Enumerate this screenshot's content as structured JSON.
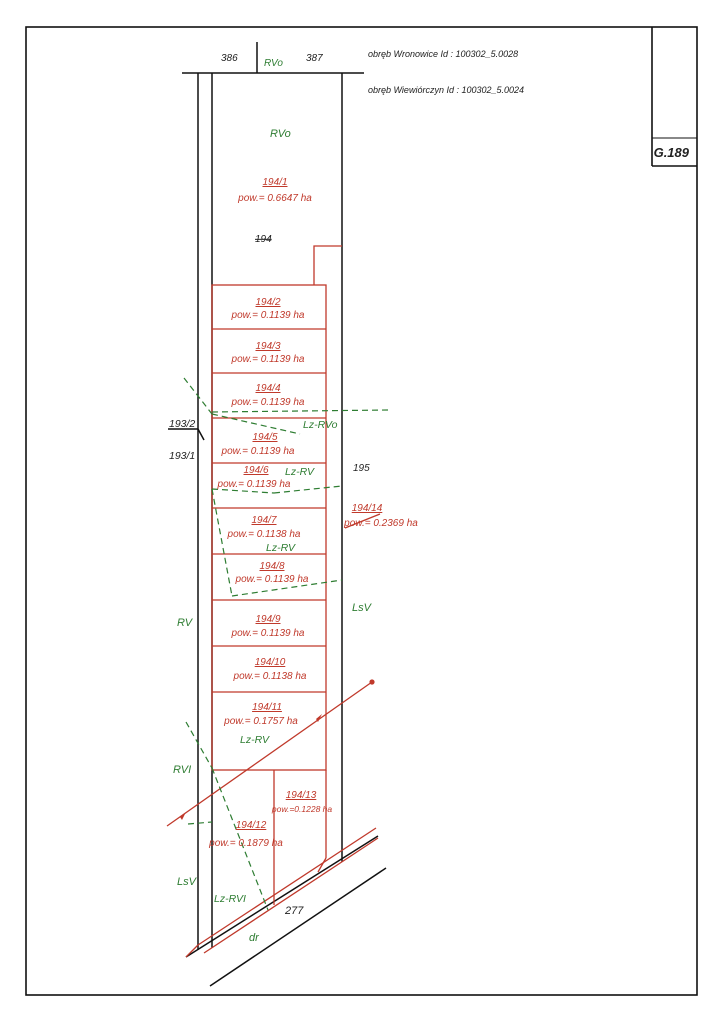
{
  "sheet": {
    "sheet_id": "G.189",
    "precinct_wronowice": "obręb Wronowice Id : 100302_5.0028",
    "precinct_wiewiorczyn": "obręb Wiewiórczyn  Id : 100302_5.0024"
  },
  "neighbor_parcels": {
    "p386": "386",
    "p387": "387",
    "p193_2": "193/2",
    "p193_1": "193/1",
    "p195": "195",
    "p277": "277"
  },
  "land_use": {
    "rvo_top": "RVo",
    "rvo_main": "RVo",
    "lz_rvo": "Lz-RVo",
    "lz_rv_1": "Lz-RV",
    "lz_rv_2": "Lz-RV",
    "lz_rv_3": "Lz-RV",
    "rv": "RV",
    "rvi": "RVI",
    "lsv_left": "LsV",
    "lsv_right": "LsV",
    "lz_rvi": "Lz-RVI",
    "dr": "dr"
  },
  "original_parcel": "194",
  "parcels": [
    {
      "id": "194/1",
      "area": "pow.= 0.6647 ha"
    },
    {
      "id": "194/2",
      "area": "pow.= 0.1139 ha"
    },
    {
      "id": "194/3",
      "area": "pow.= 0.1139 ha"
    },
    {
      "id": "194/4",
      "area": "pow.= 0.1139 ha"
    },
    {
      "id": "194/5",
      "area": "pow.= 0.1139 ha"
    },
    {
      "id": "194/6",
      "area": "pow.= 0.1139 ha"
    },
    {
      "id": "194/7",
      "area": "pow.= 0.1138 ha"
    },
    {
      "id": "194/8",
      "area": "pow.= 0.1139 ha"
    },
    {
      "id": "194/9",
      "area": "pow.= 0.1139 ha"
    },
    {
      "id": "194/10",
      "area": "pow.= 0.1138 ha"
    },
    {
      "id": "194/11",
      "area": "pow.= 0.1757 ha"
    },
    {
      "id": "194/12",
      "area": "pow.= 0.1879 ha"
    },
    {
      "id": "194/13",
      "area": "pow.=0.1228 ha"
    },
    {
      "id": "194/14",
      "area": "pow.= 0.2369 ha"
    }
  ]
}
